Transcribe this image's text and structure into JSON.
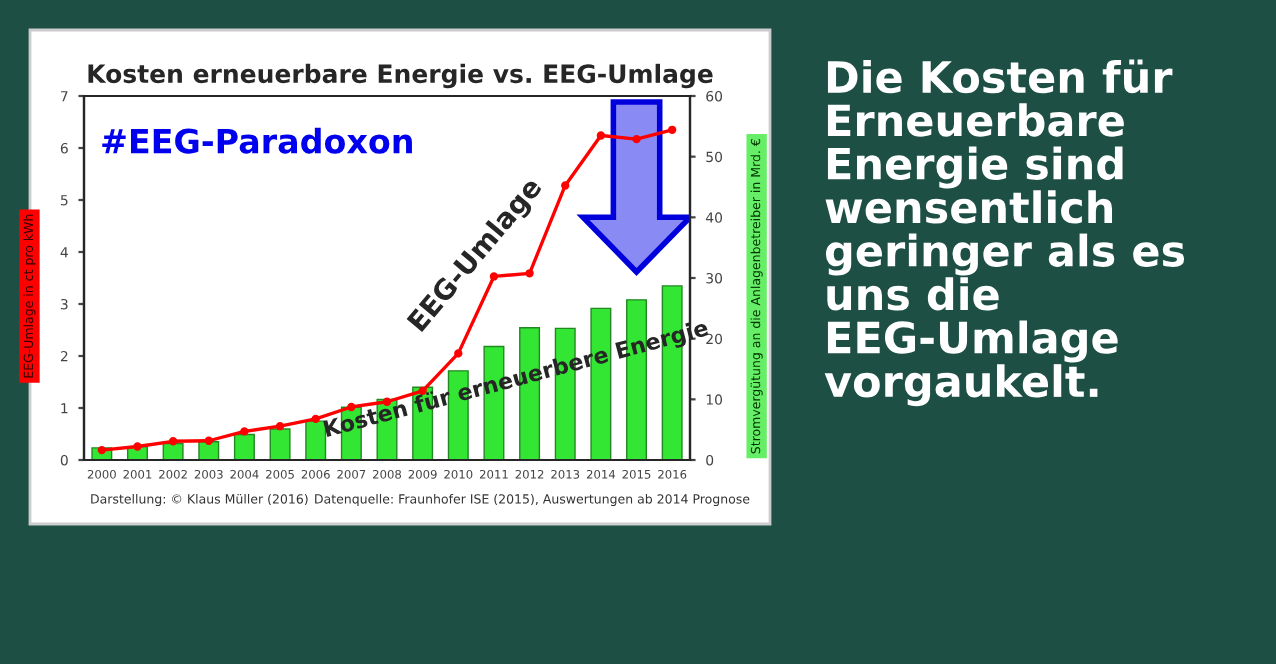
{
  "chart_data": {
    "type": "bar",
    "title": "Kosten erneuerbare Energie vs. EEG-Umlage",
    "categories": [
      "2000",
      "2001",
      "2002",
      "2003",
      "2004",
      "2005",
      "2006",
      "2007",
      "2008",
      "2009",
      "2010",
      "2011",
      "2012",
      "2013",
      "2014",
      "2015",
      "2016"
    ],
    "ylabel": "EEG-Umlage in ct pro kWh",
    "y2label": "Stromvergütung an die Anlagenbetreiber in Mrd. €",
    "series": [
      {
        "axis": "y2",
        "color": "#33e633",
        "values": [
          2.0,
          2.2,
          2.7,
          3.0,
          4.2,
          5.1,
          6.4,
          8.7,
          10.0,
          12.0,
          14.7,
          18.7,
          21.8,
          21.7,
          25.0,
          26.4,
          28.7
        ]
      },
      {
        "type": "line",
        "axis": "y",
        "color": "#ff0000",
        "marker": "circle",
        "values": [
          0.19,
          0.26,
          0.36,
          0.37,
          0.55,
          0.65,
          0.79,
          1.02,
          1.12,
          1.33,
          2.05,
          3.53,
          3.59,
          5.28,
          6.24,
          6.17,
          6.35
        ]
      }
    ],
    "ylim": [
      0,
      7
    ],
    "yticks": [
      0,
      1,
      2,
      3,
      4,
      5,
      6,
      7
    ],
    "y2lim": [
      0,
      60
    ],
    "y2ticks": [
      0,
      10,
      20,
      30,
      40,
      50,
      60
    ],
    "grid": false,
    "legend": false,
    "annotations": [
      "#EEG-Paradoxon",
      "EEG-Umlage",
      "Kosten für erneuerbere Energie",
      "Darstellung: © Klaus Müller (2016)",
      "Datenquelle: Fraunhofer ISE (2015), Auswertungen ab 2014 Prognose",
      "Die Kosten für Erneuerbare Energie sind wensentlich geringer als es uns die EEG-Umlage vorgaukelt."
    ]
  }
}
